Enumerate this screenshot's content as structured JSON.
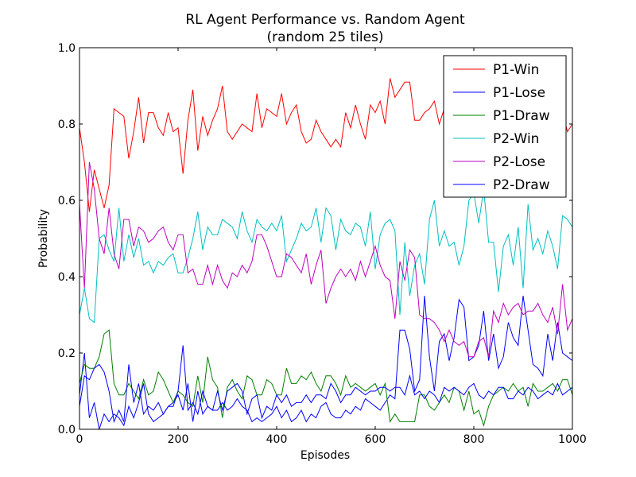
{
  "chart_data": {
    "type": "line",
    "title": "RL Agent Performance vs. Random Agent",
    "subtitle": "(random 25 tiles)",
    "xlabel": "Episodes",
    "ylabel": "Probability",
    "xlim": [
      0,
      1000
    ],
    "ylim": [
      0.0,
      1.0
    ],
    "x_ticks": [
      "0",
      "200",
      "400",
      "600",
      "800",
      "1000"
    ],
    "y_ticks": [
      "0.0",
      "0.2",
      "0.4",
      "0.6",
      "0.8",
      "1.0"
    ],
    "grid": false,
    "legend_position": "top-right",
    "x": [
      0,
      10,
      20,
      30,
      40,
      50,
      60,
      70,
      80,
      90,
      100,
      110,
      120,
      130,
      140,
      150,
      160,
      170,
      180,
      190,
      200,
      210,
      220,
      230,
      240,
      250,
      260,
      270,
      280,
      290,
      300,
      310,
      320,
      330,
      340,
      350,
      360,
      370,
      380,
      390,
      400,
      410,
      420,
      430,
      440,
      450,
      460,
      470,
      480,
      490,
      500,
      510,
      520,
      530,
      540,
      550,
      560,
      570,
      580,
      590,
      600,
      610,
      620,
      630,
      640,
      650,
      660,
      670,
      680,
      690,
      700,
      710,
      720,
      730,
      740,
      750,
      760,
      770,
      780,
      790,
      800,
      810,
      820,
      830,
      840,
      850,
      860,
      870,
      880,
      890,
      900,
      910,
      920,
      930,
      940,
      950,
      960,
      970,
      980,
      990,
      1000
    ],
    "series": [
      {
        "name": "P1-Win",
        "color": "#ff0000",
        "values": [
          0.79,
          0.7,
          0.57,
          0.68,
          0.63,
          0.58,
          0.64,
          0.84,
          0.83,
          0.82,
          0.71,
          0.78,
          0.87,
          0.75,
          0.83,
          0.83,
          0.79,
          0.77,
          0.83,
          0.78,
          0.79,
          0.67,
          0.81,
          0.89,
          0.73,
          0.82,
          0.77,
          0.81,
          0.84,
          0.9,
          0.78,
          0.76,
          0.78,
          0.8,
          0.79,
          0.78,
          0.88,
          0.79,
          0.84,
          0.83,
          0.82,
          0.88,
          0.8,
          0.83,
          0.85,
          0.78,
          0.75,
          0.76,
          0.81,
          0.78,
          0.76,
          0.74,
          0.76,
          0.74,
          0.83,
          0.79,
          0.85,
          0.8,
          0.76,
          0.85,
          0.83,
          0.86,
          0.8,
          0.92,
          0.87,
          0.89,
          0.91,
          0.91,
          0.81,
          0.81,
          0.83,
          0.84,
          0.86,
          0.8,
          0.84,
          0.85,
          0.86,
          0.84,
          0.85,
          0.86,
          0.87,
          0.83,
          0.84,
          0.88,
          0.85,
          0.84,
          0.87,
          0.85,
          0.86,
          0.84,
          0.83,
          0.85,
          0.84,
          0.86,
          0.85,
          0.84,
          0.86,
          0.85,
          0.83,
          0.78,
          0.8
        ]
      },
      {
        "name": "P1-Lose",
        "color": "#0000ff",
        "values": [
          0.09,
          0.2,
          0.03,
          0.07,
          0.0,
          0.04,
          0.02,
          0.04,
          0.03,
          0.01,
          0.06,
          0.03,
          0.07,
          0.12,
          0.04,
          0.02,
          0.03,
          0.04,
          0.06,
          0.07,
          0.09,
          0.05,
          0.12,
          0.02,
          0.1,
          0.04,
          0.06,
          0.05,
          0.05,
          0.07,
          0.05,
          0.06,
          0.08,
          0.06,
          0.05,
          0.02,
          0.03,
          0.02,
          0.03,
          0.04,
          0.06,
          0.03,
          0.05,
          0.02,
          0.03,
          0.05,
          0.02,
          0.04,
          0.03,
          0.06,
          0.07,
          0.04,
          0.03,
          0.03,
          0.05,
          0.04,
          0.06,
          0.05,
          0.08,
          0.07,
          0.06,
          0.05,
          0.07,
          0.09,
          0.08,
          0.26,
          0.26,
          0.21,
          0.1,
          0.13,
          0.35,
          0.19,
          0.1,
          0.23,
          0.25,
          0.18,
          0.24,
          0.34,
          0.32,
          0.18,
          0.19,
          0.22,
          0.31,
          0.18,
          0.25,
          0.16,
          0.19,
          0.28,
          0.24,
          0.22,
          0.35,
          0.26,
          0.17,
          0.16,
          0.14,
          0.25,
          0.18,
          0.28,
          0.2,
          0.19,
          0.18
        ]
      },
      {
        "name": "P1-Draw",
        "color": "#008000",
        "values": [
          0.12,
          0.17,
          0.16,
          0.16,
          0.19,
          0.25,
          0.26,
          0.12,
          0.09,
          0.09,
          0.12,
          0.1,
          0.08,
          0.13,
          0.09,
          0.1,
          0.15,
          0.13,
          0.1,
          0.07,
          0.1,
          0.09,
          0.07,
          0.06,
          0.14,
          0.07,
          0.19,
          0.13,
          0.11,
          0.03,
          0.11,
          0.13,
          0.1,
          0.08,
          0.14,
          0.13,
          0.09,
          0.09,
          0.13,
          0.12,
          0.09,
          0.09,
          0.16,
          0.12,
          0.12,
          0.14,
          0.13,
          0.15,
          0.12,
          0.1,
          0.14,
          0.14,
          0.12,
          0.09,
          0.14,
          0.11,
          0.12,
          0.11,
          0.1,
          0.11,
          0.12,
          0.09,
          0.12,
          0.02,
          0.04,
          0.02,
          0.02,
          0.02,
          0.02,
          0.09,
          0.09,
          0.06,
          0.05,
          0.07,
          0.09,
          0.07,
          0.11,
          0.1,
          0.05,
          0.1,
          0.04,
          0.05,
          0.01,
          0.06,
          0.09,
          0.1,
          0.11,
          0.1,
          0.12,
          0.1,
          0.11,
          0.06,
          0.12,
          0.1,
          0.1,
          0.11,
          0.12,
          0.1,
          0.13,
          0.13,
          0.09
        ]
      },
      {
        "name": "P2-Win",
        "color": "#00bfbf",
        "values": [
          0.3,
          0.37,
          0.29,
          0.28,
          0.5,
          0.51,
          0.47,
          0.44,
          0.58,
          0.44,
          0.51,
          0.45,
          0.5,
          0.43,
          0.44,
          0.41,
          0.44,
          0.43,
          0.45,
          0.46,
          0.41,
          0.41,
          0.45,
          0.5,
          0.57,
          0.47,
          0.53,
          0.51,
          0.51,
          0.55,
          0.54,
          0.53,
          0.5,
          0.57,
          0.52,
          0.49,
          0.55,
          0.53,
          0.52,
          0.54,
          0.52,
          0.56,
          0.44,
          0.47,
          0.5,
          0.54,
          0.52,
          0.53,
          0.58,
          0.49,
          0.58,
          0.56,
          0.47,
          0.55,
          0.52,
          0.51,
          0.54,
          0.53,
          0.48,
          0.57,
          0.42,
          0.51,
          0.54,
          0.55,
          0.52,
          0.3,
          0.49,
          0.35,
          0.43,
          0.46,
          0.38,
          0.55,
          0.6,
          0.48,
          0.52,
          0.48,
          0.49,
          0.43,
          0.48,
          0.6,
          0.62,
          0.54,
          0.63,
          0.49,
          0.49,
          0.36,
          0.48,
          0.51,
          0.43,
          0.53,
          0.37,
          0.59,
          0.47,
          0.5,
          0.46,
          0.52,
          0.48,
          0.42,
          0.56,
          0.55,
          0.53
        ]
      },
      {
        "name": "P2-Lose",
        "color": "#bf00bf",
        "values": [
          0.59,
          0.37,
          0.7,
          0.63,
          0.5,
          0.46,
          0.58,
          0.46,
          0.42,
          0.55,
          0.55,
          0.48,
          0.53,
          0.52,
          0.49,
          0.5,
          0.52,
          0.53,
          0.49,
          0.47,
          0.51,
          0.51,
          0.41,
          0.42,
          0.38,
          0.38,
          0.43,
          0.38,
          0.43,
          0.39,
          0.37,
          0.41,
          0.4,
          0.43,
          0.41,
          0.44,
          0.51,
          0.51,
          0.48,
          0.44,
          0.4,
          0.4,
          0.46,
          0.45,
          0.43,
          0.41,
          0.46,
          0.38,
          0.43,
          0.47,
          0.33,
          0.37,
          0.4,
          0.42,
          0.4,
          0.42,
          0.39,
          0.44,
          0.4,
          0.44,
          0.48,
          0.43,
          0.4,
          0.39,
          0.29,
          0.44,
          0.39,
          0.47,
          0.45,
          0.3,
          0.29,
          0.29,
          0.28,
          0.26,
          0.23,
          0.26,
          0.23,
          0.22,
          0.23,
          0.19,
          0.19,
          0.23,
          0.24,
          0.19,
          0.31,
          0.28,
          0.33,
          0.3,
          0.32,
          0.33,
          0.3,
          0.31,
          0.31,
          0.33,
          0.3,
          0.28,
          0.32,
          0.25,
          0.38,
          0.26,
          0.29
        ]
      },
      {
        "name": "P2-Draw",
        "color": "#0000ff",
        "values": [
          0.06,
          0.14,
          0.13,
          0.16,
          0.17,
          0.15,
          0.1,
          0.02,
          0.05,
          0.02,
          0.17,
          0.07,
          0.12,
          0.04,
          0.06,
          0.05,
          0.07,
          0.04,
          0.06,
          0.06,
          0.1,
          0.22,
          0.05,
          0.07,
          0.04,
          0.1,
          0.06,
          0.05,
          0.1,
          0.05,
          0.1,
          0.11,
          0.12,
          0.1,
          0.04,
          0.08,
          0.09,
          0.03,
          0.06,
          0.05,
          0.09,
          0.07,
          0.09,
          0.06,
          0.07,
          0.07,
          0.09,
          0.07,
          0.09,
          0.09,
          0.08,
          0.12,
          0.1,
          0.07,
          0.09,
          0.09,
          0.11,
          0.1,
          0.09,
          0.1,
          0.1,
          0.11,
          0.11,
          0.1,
          0.11,
          0.11,
          0.09,
          0.14,
          0.09,
          0.1,
          0.08,
          0.1,
          0.09,
          0.07,
          0.11,
          0.1,
          0.11,
          0.1,
          0.09,
          0.11,
          0.12,
          0.09,
          0.08,
          0.1,
          0.09,
          0.11,
          0.11,
          0.08,
          0.08,
          0.1,
          0.09,
          0.11,
          0.1,
          0.08,
          0.09,
          0.1,
          0.09,
          0.12,
          0.09,
          0.1,
          0.11
        ]
      }
    ]
  }
}
